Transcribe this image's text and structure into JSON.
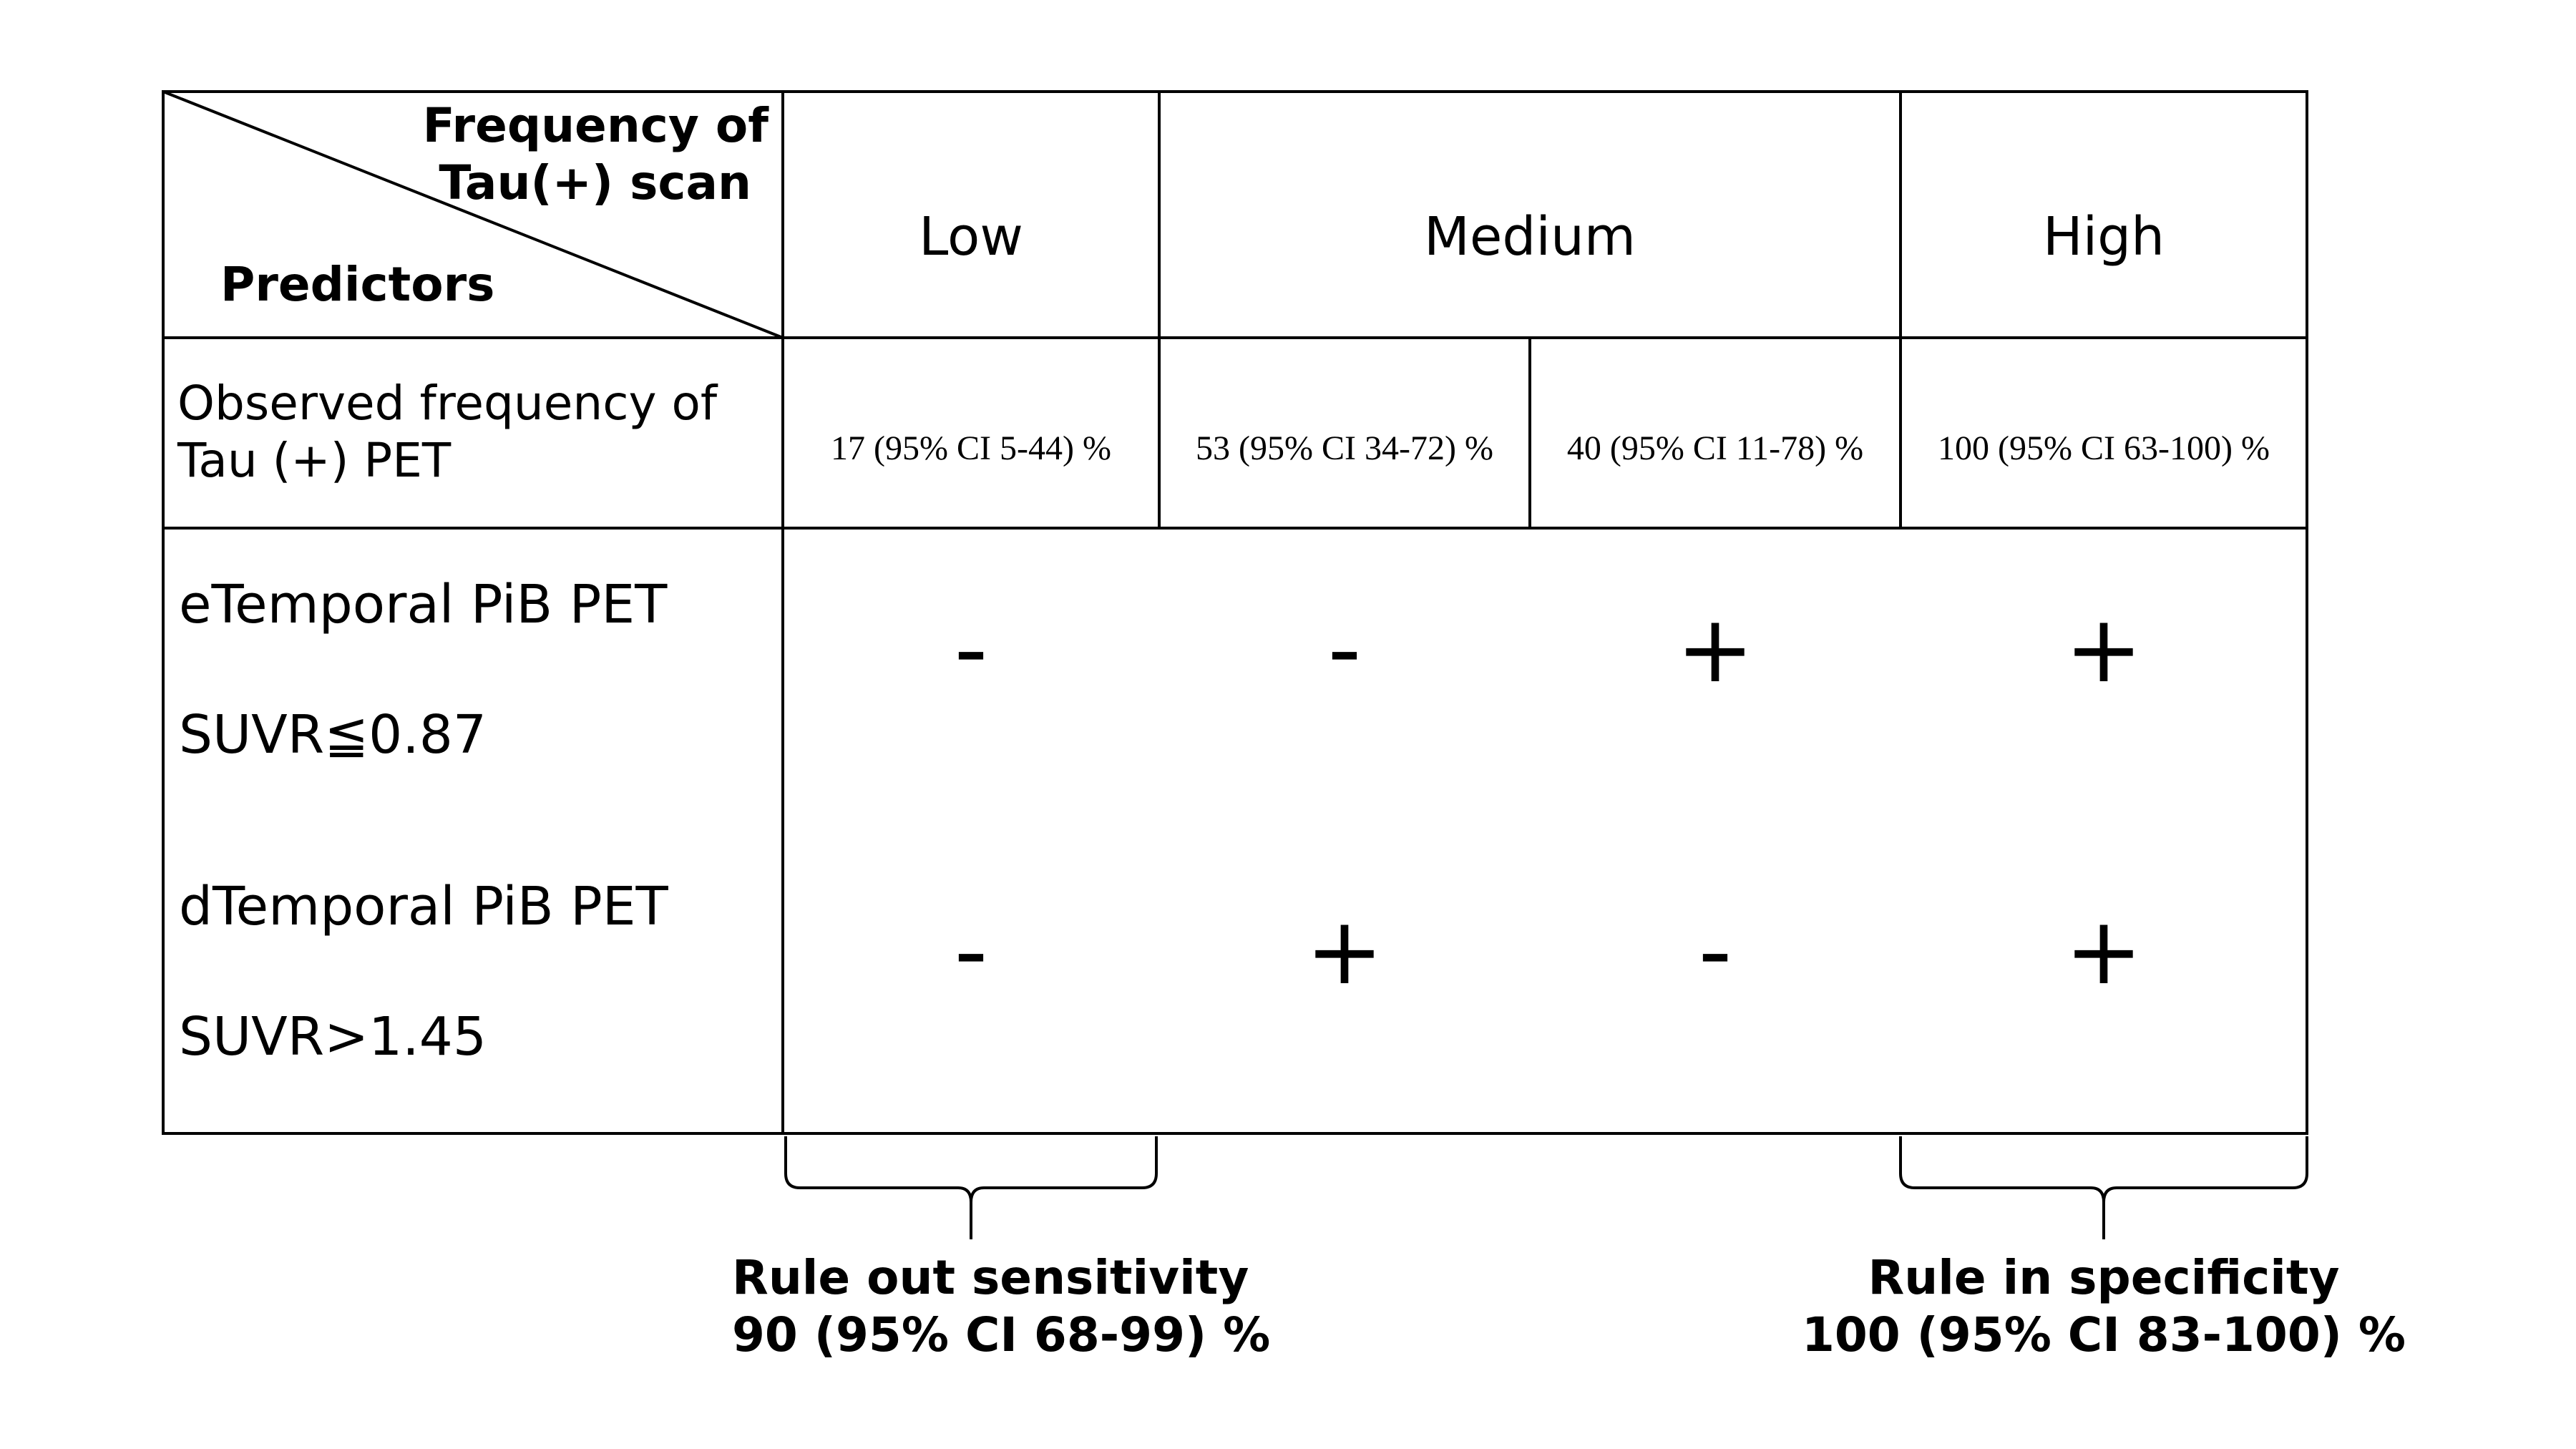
{
  "header": {
    "corner_top_line1": "Frequency of",
    "corner_top_line2": "Tau(+) scan",
    "corner_bottom": "Predictors",
    "groups": {
      "low": "Low",
      "medium": "Medium",
      "high": "High"
    }
  },
  "observed": {
    "label_line1": "Observed frequency of",
    "label_line2": "Tau (+) PET",
    "values": [
      "17 (95% CI 5-44) %",
      "53 (95% CI 34-72) %",
      "40 (95% CI 11-78) %",
      "100 (95% CI 63-100) %"
    ]
  },
  "predictors": [
    {
      "name": "eTemporal PiB PET",
      "threshold": "SUVR≦0.87",
      "signs": [
        "-",
        "-",
        "+",
        "+"
      ]
    },
    {
      "name": "dTemporal PiB PET",
      "threshold": "SUVR>1.45",
      "signs": [
        "-",
        "+",
        "-",
        "+"
      ]
    }
  ],
  "annotations": {
    "rule_out_line1": "Rule out sensitivity",
    "rule_out_line2": "90 (95% CI 68-99) %",
    "rule_in_line1": "Rule in specificity",
    "rule_in_line2": "100 (95% CI 83-100) %"
  },
  "colors": {
    "line": "#000000",
    "background": "#ffffff"
  }
}
